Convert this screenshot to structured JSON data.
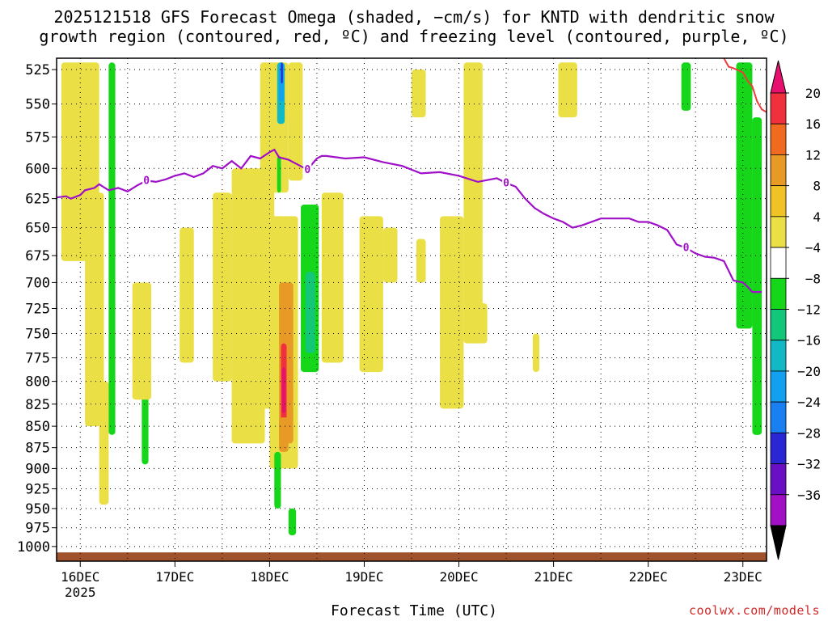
{
  "header": {
    "title_line1": "2025121518 GFS Forecast Omega (shaded, −cm/s) for KNTD with dendritic snow",
    "title_line2": "growth region (contoured, red, ºC) and freezing level (contoured, purple, ºC)"
  },
  "footer": {
    "xlabel": "Forecast Time (UTC)",
    "credit": "coolwx.com/models"
  },
  "chart_data": {
    "type": "heatmap",
    "title": "2025121518 GFS Forecast Omega (shaded, −cm/s) for KNTD with dendritic snow growth region (contoured, red, ºC) and freezing level (contoured, purple, ºC)",
    "xlabel": "Forecast Time (UTC)",
    "ylabel": "",
    "y_scale": "pressure (reversed)",
    "y_ticks": [
      525,
      550,
      575,
      600,
      625,
      650,
      675,
      700,
      725,
      750,
      775,
      800,
      825,
      850,
      875,
      900,
      925,
      950,
      975,
      1000
    ],
    "x_ticks": [
      "16DEC",
      "17DEC",
      "18DEC",
      "19DEC",
      "20DEC",
      "21DEC",
      "22DEC",
      "23DEC"
    ],
    "x_year_label": "2025",
    "xlim_days": [
      15.75,
      23.25
    ],
    "ylim_hpa": [
      1020,
      517
    ],
    "grid": true,
    "colorbar": {
      "labels": [
        "20",
        "16",
        "12",
        "8",
        "4",
        "−4",
        "−8",
        "−12",
        "−16",
        "−20",
        "−24",
        "−28",
        "−32",
        "−36"
      ],
      "colors": [
        "#e8106e",
        "#f0303c",
        "#f06a20",
        "#e79b26",
        "#efc226",
        "#ebdf46",
        "#ffffff",
        "#16d61a",
        "#12c67a",
        "#12b9c4",
        "#14a0f0",
        "#1a7ff0",
        "#2b26d4",
        "#6a10c4",
        "#a110c4",
        "#a0a0a0"
      ]
    },
    "freezing_level": {
      "label": "0",
      "color": "#a010c8",
      "x_days": [
        15.75,
        15.85,
        15.9,
        16.0,
        16.05,
        16.15,
        16.2,
        16.3,
        16.4,
        16.5,
        16.6,
        16.7,
        16.8,
        16.9,
        17.0,
        17.1,
        17.2,
        17.3,
        17.4,
        17.5,
        17.6,
        17.7,
        17.8,
        17.9,
        18.0,
        18.05,
        18.1,
        18.2,
        18.3,
        18.4,
        18.5,
        18.55,
        18.6,
        18.8,
        19.0,
        19.2,
        19.4,
        19.6,
        19.8,
        20.0,
        20.2,
        20.4,
        20.5,
        20.6,
        20.7,
        20.8,
        20.9,
        21.0,
        21.1,
        21.2,
        21.3,
        21.5,
        21.7,
        21.8,
        21.9,
        22.0,
        22.1,
        22.2,
        22.3,
        22.4,
        22.5,
        22.6,
        22.7,
        22.8,
        22.9,
        23.0,
        23.05,
        23.1,
        23.2
      ],
      "y_hpa": [
        624,
        623,
        625,
        622,
        618,
        616,
        613,
        618,
        616,
        619,
        614,
        610,
        611,
        609,
        606,
        604,
        607,
        604,
        598,
        600,
        594,
        600,
        590,
        592,
        587,
        585,
        591,
        593,
        597,
        601,
        592,
        590,
        590,
        592,
        591,
        595,
        598,
        604,
        603,
        606,
        611,
        608,
        612,
        615,
        625,
        633,
        638,
        642,
        645,
        650,
        648,
        642,
        642,
        642,
        645,
        645,
        648,
        652,
        665,
        668,
        673,
        676,
        677,
        680,
        698,
        700,
        704,
        709,
        709
      ]
    },
    "dendritic_snow_contour": {
      "color": "#f03c3c",
      "x_days": [
        22.8,
        22.85,
        22.9,
        23.0,
        23.05,
        23.1,
        23.15,
        23.2,
        23.25
      ],
      "y_hpa": [
        517,
        523,
        524,
        527,
        533,
        537,
        548,
        554,
        556
      ]
    }
  }
}
